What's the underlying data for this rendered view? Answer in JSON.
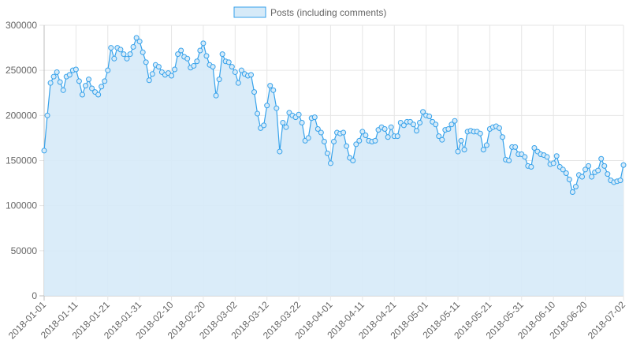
{
  "chart_data": {
    "type": "line",
    "title": "",
    "xlabel": "",
    "ylabel": "",
    "ylim": [
      0,
      300000
    ],
    "y_ticks": [
      "0",
      "50000",
      "100000",
      "150000",
      "200000",
      "250000",
      "300000"
    ],
    "x_ticks": [
      "2018-01-01",
      "2018-01-11",
      "2018-01-21",
      "2018-01-31",
      "2018-02-10",
      "2018-02-20",
      "2018-03-02",
      "2018-03-12",
      "2018-03-22",
      "2018-04-01",
      "2018-04-11",
      "2018-04-21",
      "2018-05-01",
      "2018-05-11",
      "2018-05-21",
      "2018-05-31",
      "2018-06-10",
      "2018-06-20",
      "2018-07-02"
    ],
    "x_start": "2018-01-01",
    "x_end": "2018-07-02",
    "grid": true,
    "legend_position": "top",
    "series": [
      {
        "name": "Posts (including comments)",
        "color": "#36a2eb",
        "fill": "#d6eaf8",
        "values": [
          161000,
          200000,
          236000,
          243000,
          248000,
          237000,
          228000,
          243000,
          245000,
          250000,
          251000,
          238000,
          223000,
          233000,
          240000,
          230000,
          226000,
          223000,
          232000,
          238000,
          250000,
          275000,
          263000,
          275000,
          273000,
          268000,
          263000,
          268000,
          276000,
          286000,
          282000,
          270000,
          259000,
          239000,
          246000,
          256000,
          254000,
          248000,
          245000,
          247000,
          244000,
          251000,
          268000,
          272000,
          265000,
          263000,
          253000,
          255000,
          260000,
          272000,
          280000,
          266000,
          256000,
          254000,
          222000,
          240000,
          268000,
          260000,
          259000,
          254000,
          248000,
          236000,
          250000,
          246000,
          244000,
          245000,
          226000,
          202000,
          186000,
          189000,
          211000,
          233000,
          228000,
          208000,
          160000,
          192000,
          187000,
          203000,
          200000,
          198000,
          201000,
          192000,
          172000,
          175000,
          197000,
          198000,
          185000,
          181000,
          171000,
          158000,
          147000,
          171000,
          181000,
          180000,
          181000,
          166000,
          153000,
          150000,
          168000,
          172000,
          182000,
          178000,
          172000,
          171000,
          172000,
          184000,
          187000,
          185000,
          176000,
          187000,
          177000,
          177000,
          192000,
          189000,
          193000,
          193000,
          190000,
          183000,
          192000,
          204000,
          200000,
          199000,
          193000,
          190000,
          177000,
          173000,
          184000,
          185000,
          190000,
          194000,
          160000,
          172000,
          162000,
          182000,
          183000,
          182000,
          182000,
          180000,
          162000,
          167000,
          185000,
          187000,
          188000,
          186000,
          176000,
          151000,
          150000,
          165000,
          165000,
          157000,
          157000,
          154000,
          144000,
          143000,
          164000,
          160000,
          157000,
          156000,
          154000,
          146000,
          147000,
          155000,
          143000,
          140000,
          136000,
          129000,
          115000,
          121000,
          134000,
          132000,
          140000,
          144000,
          132000,
          137000,
          139000,
          152000,
          144000,
          135000,
          128000,
          126000,
          127000,
          128000,
          145000
        ]
      }
    ]
  }
}
